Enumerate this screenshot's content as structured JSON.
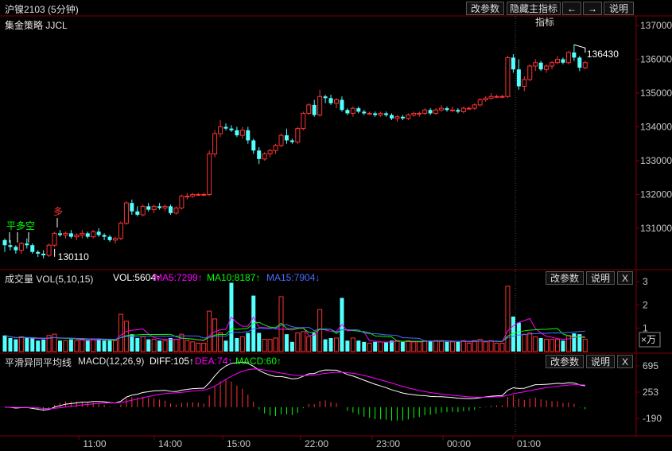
{
  "header": {
    "title": "沪镍2103 (5分钟)",
    "strategy": "集金策略 JJCL",
    "buttons": [
      "改参数",
      "隐藏主指标",
      "←",
      "→",
      "说明"
    ]
  },
  "colors": {
    "up": "#ff3232",
    "down": "#54ffff",
    "ma5": "#ffffff",
    "ma10": "#ffff00",
    "ma15": "#ff00ff",
    "diff": "#ffffff",
    "dea": "#ff00ff",
    "macd_pos": "#ff3232",
    "macd_neg": "#00ff00"
  },
  "volume_header": {
    "name": "成交量 VOL(5,10,15)",
    "vol": "VOL:5604↑",
    "ma5": "MA5:7299↑",
    "ma10": "MA10:8187↑",
    "ma15": "MA15:7904↓",
    "buttons": [
      "改参数",
      "说明",
      "X"
    ]
  },
  "macd_header": {
    "name": "平滑异同平均线",
    "params": "MACD(12,26,9)",
    "diff": "DIFF:105↑",
    "dea": "DEA:74↑",
    "macd": "MACD:60↑",
    "buttons": [
      "改参数",
      "说明",
      "X"
    ]
  },
  "chart_data": [
    {
      "type": "candlestick",
      "y_ticks": [
        "137000",
        "136000",
        "135000",
        "134000",
        "133000",
        "132000",
        "131000"
      ],
      "ylim": [
        130000,
        137200
      ],
      "x_ticks": [
        "11:00",
        "14:00",
        "15:00",
        "22:00",
        "23:00",
        "00:00",
        "01:00"
      ],
      "annotations": {
        "high_label": "136430",
        "low_label": "130110",
        "signal_buy": "多",
        "signal_flat": "平多空"
      },
      "candles": [
        [
          130650,
          130700,
          130300,
          130500
        ],
        [
          130500,
          130650,
          130350,
          130450
        ],
        [
          130450,
          130500,
          130250,
          130350
        ],
        [
          130350,
          130600,
          130250,
          130550
        ],
        [
          130550,
          130700,
          130400,
          130500
        ],
        [
          130500,
          130550,
          130250,
          130300
        ],
        [
          130300,
          130350,
          130150,
          130250
        ],
        [
          130250,
          130350,
          130110,
          130200
        ],
        [
          130200,
          130550,
          130150,
          130500
        ],
        [
          130500,
          130900,
          130450,
          130850
        ],
        [
          130850,
          130950,
          130750,
          130800
        ],
        [
          130800,
          130900,
          130700,
          130850
        ],
        [
          130850,
          130950,
          130700,
          130750
        ],
        [
          130750,
          130850,
          130650,
          130800
        ],
        [
          130800,
          130950,
          130700,
          130850
        ],
        [
          130850,
          130900,
          130700,
          130750
        ],
        [
          130750,
          130950,
          130700,
          130900
        ],
        [
          130900,
          131000,
          130750,
          130800
        ],
        [
          130800,
          130850,
          130650,
          130750
        ],
        [
          130750,
          130800,
          130600,
          130650
        ],
        [
          130650,
          130750,
          130550,
          130700
        ],
        [
          130700,
          131200,
          130650,
          131150
        ],
        [
          131150,
          131800,
          131100,
          131750
        ],
        [
          131750,
          131850,
          131400,
          131500
        ],
        [
          131500,
          131650,
          131350,
          131400
        ],
        [
          131400,
          131700,
          131350,
          131650
        ],
        [
          131650,
          131750,
          131500,
          131550
        ],
        [
          131550,
          131700,
          131450,
          131650
        ],
        [
          131650,
          131750,
          131550,
          131600
        ],
        [
          131600,
          131700,
          131500,
          131650
        ],
        [
          131650,
          131700,
          131400,
          131450
        ],
        [
          131450,
          131650,
          131400,
          131600
        ],
        [
          131600,
          132000,
          131550,
          131950
        ],
        [
          131950,
          132050,
          131850,
          131950
        ],
        [
          131950,
          132050,
          131900,
          132000
        ],
        [
          132000,
          132050,
          131950,
          132000
        ],
        [
          132000,
          132050,
          131950,
          132000
        ],
        [
          132000,
          133300,
          131950,
          133200
        ],
        [
          133200,
          133900,
          133100,
          133800
        ],
        [
          133800,
          134200,
          133700,
          134000
        ],
        [
          134000,
          134100,
          133900,
          133950
        ],
        [
          133950,
          134050,
          133850,
          133900
        ],
        [
          133900,
          134000,
          133700,
          133750
        ],
        [
          133750,
          134000,
          133650,
          133900
        ],
        [
          133900,
          134000,
          133500,
          133600
        ],
        [
          133600,
          133650,
          133200,
          133300
        ],
        [
          133300,
          133400,
          132900,
          133050
        ],
        [
          133050,
          133250,
          133000,
          133200
        ],
        [
          133200,
          133350,
          133100,
          133300
        ],
        [
          133300,
          133500,
          133200,
          133450
        ],
        [
          133450,
          133800,
          133400,
          133750
        ],
        [
          133750,
          133950,
          133500,
          133600
        ],
        [
          133600,
          133650,
          133500,
          133550
        ],
        [
          133550,
          134000,
          133500,
          133950
        ],
        [
          133950,
          134450,
          133900,
          134400
        ],
        [
          134400,
          134700,
          134350,
          134650
        ],
        [
          134650,
          134800,
          134300,
          134350
        ],
        [
          134350,
          135100,
          134300,
          134900
        ],
        [
          134900,
          134950,
          134700,
          134850
        ],
        [
          134850,
          134950,
          134650,
          134700
        ],
        [
          134700,
          134850,
          134550,
          134800
        ],
        [
          134800,
          134900,
          134450,
          134500
        ],
        [
          134500,
          134550,
          134350,
          134400
        ],
        [
          134400,
          134600,
          134300,
          134550
        ],
        [
          134550,
          134600,
          134400,
          134450
        ],
        [
          134450,
          134500,
          134350,
          134400
        ],
        [
          134400,
          134450,
          134350,
          134400
        ],
        [
          134400,
          134450,
          134300,
          134350
        ],
        [
          134350,
          134450,
          134300,
          134400
        ],
        [
          134400,
          134450,
          134300,
          134350
        ],
        [
          134350,
          134400,
          134200,
          134250
        ],
        [
          134250,
          134350,
          134150,
          134300
        ],
        [
          134300,
          134350,
          134200,
          134250
        ],
        [
          134250,
          134400,
          134200,
          134350
        ],
        [
          134350,
          134450,
          134300,
          134400
        ],
        [
          134400,
          134450,
          134300,
          134400
        ],
        [
          134400,
          134550,
          134350,
          134500
        ],
        [
          134500,
          134550,
          134350,
          134400
        ],
        [
          134400,
          134550,
          134350,
          134500
        ],
        [
          134500,
          134650,
          134450,
          134550
        ],
        [
          134550,
          134600,
          134450,
          134500
        ],
        [
          134500,
          134600,
          134450,
          134500
        ],
        [
          134500,
          134550,
          134400,
          134450
        ],
        [
          134450,
          134600,
          134400,
          134550
        ],
        [
          134550,
          134600,
          134500,
          134550
        ],
        [
          134550,
          134700,
          134500,
          134650
        ],
        [
          134650,
          134850,
          134600,
          134800
        ],
        [
          134800,
          134900,
          134750,
          134850
        ],
        [
          134850,
          135000,
          134800,
          134900
        ],
        [
          134900,
          134950,
          134850,
          134900
        ],
        [
          134900,
          134950,
          134850,
          134900
        ],
        [
          134900,
          136100,
          134850,
          136050
        ],
        [
          136050,
          136150,
          135600,
          135700
        ],
        [
          135700,
          136000,
          135100,
          135200
        ],
        [
          135200,
          135500,
          135050,
          135400
        ],
        [
          135400,
          135850,
          135350,
          135800
        ],
        [
          135800,
          136000,
          135650,
          135900
        ],
        [
          135900,
          135950,
          135650,
          135700
        ],
        [
          135700,
          135850,
          135600,
          135800
        ],
        [
          135800,
          135950,
          135700,
          135900
        ],
        [
          135900,
          136100,
          135850,
          136000
        ],
        [
          136000,
          136050,
          135850,
          135900
        ],
        [
          135900,
          136250,
          135850,
          136200
        ],
        [
          136200,
          136430,
          135950,
          136050
        ],
        [
          136050,
          136100,
          135650,
          135750
        ],
        [
          135750,
          135950,
          135700,
          135900
        ]
      ]
    },
    {
      "type": "bar",
      "name": "volume",
      "y_ticks": [
        "3",
        "2",
        "1"
      ],
      "unit": "×万",
      "ylim": [
        0,
        3.3
      ]
    },
    {
      "type": "line",
      "name": "macd",
      "y_ticks": [
        "695",
        "253",
        "-190"
      ],
      "ylim": [
        -230,
        760
      ]
    }
  ]
}
